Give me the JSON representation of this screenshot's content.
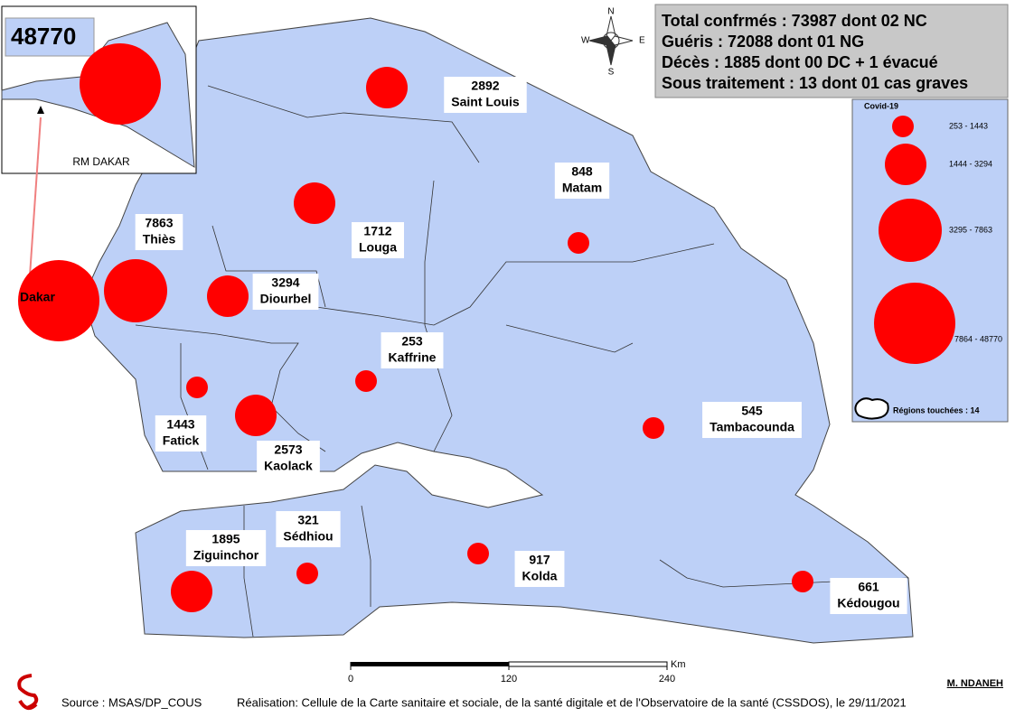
{
  "summary": [
    "Total confrmés : 73987 dont 02 NC",
    "Guéris : 72088 dont 01 NG",
    "Décès : 1885 dont 00 DC + 1 évacué",
    "Sous traitement : 13 dont 01 cas graves"
  ],
  "inset": {
    "label": "RM DAKAR"
  },
  "regions": [
    {
      "name": "Dakar",
      "cases": 48770
    },
    {
      "name": "Saint Louis",
      "cases": 2892
    },
    {
      "name": "Louga",
      "cases": 1712
    },
    {
      "name": "Thiès",
      "cases": 7863
    },
    {
      "name": "Diourbel",
      "cases": 3294
    },
    {
      "name": "Matam",
      "cases": 848
    },
    {
      "name": "Kaffrine",
      "cases": 253
    },
    {
      "name": "Fatick",
      "cases": 1443
    },
    {
      "name": "Kaolack",
      "cases": 2573
    },
    {
      "name": "Tambacounda",
      "cases": 545
    },
    {
      "name": "Ziguinchor",
      "cases": 1895
    },
    {
      "name": "Sédhiou",
      "cases": 321
    },
    {
      "name": "Kolda",
      "cases": 917
    },
    {
      "name": "Kédougou",
      "cases": 661
    }
  ],
  "legend": {
    "title": "Covid-19",
    "classes": [
      {
        "min": 253,
        "max": 1443,
        "label": "253 - 1443"
      },
      {
        "min": 1444,
        "max": 3294,
        "label": "1444 - 3294"
      },
      {
        "min": 3295,
        "max": 7863,
        "label": "3295 - 7863"
      },
      {
        "min": 7864,
        "max": 48770,
        "label": "7864 - 48770"
      }
    ],
    "touched": "Régions touchées : 14"
  },
  "compass": {
    "n": "N",
    "s": "S",
    "e": "E",
    "w": "W"
  },
  "scale": {
    "unit": "Km",
    "ticks": [
      0,
      120,
      240
    ]
  },
  "author": "M. NDANEH",
  "source": "Source : MSAS/DP_COUS",
  "credit": "Réalisation: Cellule de la Carte sanitaire et sociale, de la santé digitale et de l'Observatoire de la santé (CSSDOS), le 29/11/2021"
}
